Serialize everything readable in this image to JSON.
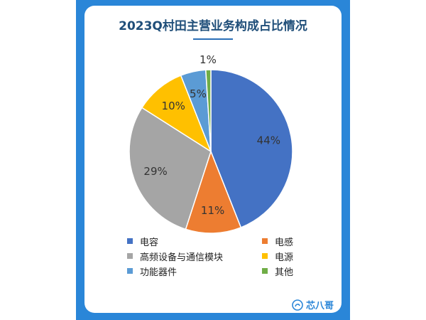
{
  "chart_data": {
    "type": "pie",
    "title": "2023Q村田主营业务构成占比情况",
    "categories": [
      "电容",
      "电感",
      "高频设备与通信模块",
      "电源",
      "功能器件",
      "其他"
    ],
    "values": [
      44,
      11,
      29,
      10,
      5,
      1
    ],
    "labels": [
      "44%",
      "11%",
      "29%",
      "10%",
      "5%",
      "1%"
    ],
    "colors": [
      "#4472c4",
      "#ed7d31",
      "#a5a5a5",
      "#ffc000",
      "#5b9bd5",
      "#70ad47"
    ],
    "legend_position": "bottom",
    "grid": false
  },
  "brand": {
    "name": "芯八哥",
    "icon": "brand-logo-icon"
  },
  "colors": {
    "frame": "#2a86d8",
    "title": "#1f4e79"
  }
}
